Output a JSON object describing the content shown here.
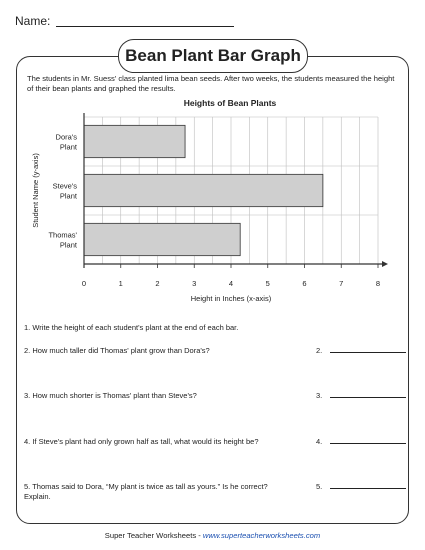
{
  "header": {
    "name_label": "Name:"
  },
  "title": "Bean Plant Bar Graph",
  "intro": "The students in Mr. Suess' class planted lima bean seeds.  After two weeks, the students measured the height of their bean plants and graphed the results.",
  "chart_data": {
    "type": "bar",
    "orientation": "horizontal",
    "title": "Heights of Bean Plants",
    "xlabel": "Height in Inches (x-axis)",
    "ylabel": "Student Name (y-axis)",
    "categories": [
      [
        "Dora's",
        "Plant"
      ],
      [
        "Steve's",
        "Plant"
      ],
      [
        "Thomas'",
        "Plant"
      ]
    ],
    "values": [
      2.75,
      6.5,
      4.25
    ],
    "xlim": [
      0,
      8
    ],
    "xticks": [
      "0",
      "1",
      "2",
      "3",
      "4",
      "5",
      "6",
      "7",
      "8"
    ],
    "grid": true,
    "bar_color": "#cfcfcf"
  },
  "questions": [
    {
      "text": "1. Write the height of each student's plant at the end of each bar.",
      "num": ""
    },
    {
      "text": "2. How much taller did Thomas' plant grow than Dora's?",
      "num": "2."
    },
    {
      "text": "3. How much shorter is Thomas' plant than Steve's?",
      "num": "3."
    },
    {
      "text": "4. If Steve's plant had only grown half as tall, what would its height be?",
      "num": "4."
    },
    {
      "text": "5. Thomas said to Dora, “My plant is twice as tall as yours.”  Is he correct?\n    Explain.",
      "num": "5."
    }
  ],
  "footer": {
    "text": "Super Teacher Worksheets - ",
    "link": "www.superteacherworksheets.com"
  }
}
